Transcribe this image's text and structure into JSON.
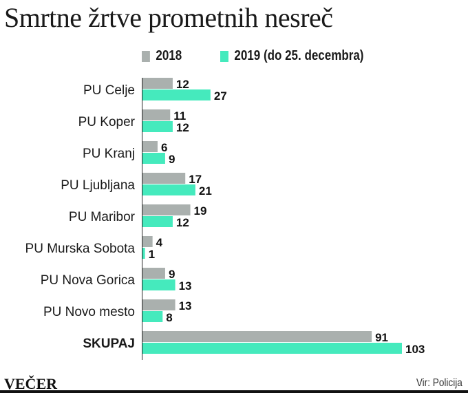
{
  "chart_data": {
    "type": "bar",
    "orientation": "horizontal",
    "title": "Smrtne žrtve prometnih nesreč",
    "categories": [
      "PU Celje",
      "PU Koper",
      "PU Kranj",
      "PU Ljubljana",
      "PU Maribor",
      "PU Murska Sobota",
      "PU Nova Gorica",
      "PU Novo mesto",
      "SKUPAJ"
    ],
    "series": [
      {
        "name": "2018",
        "color": "#aab0ae",
        "values": [
          12,
          11,
          6,
          17,
          19,
          4,
          9,
          13,
          91
        ]
      },
      {
        "name": "2019 (do 25. decembra)",
        "color": "#45eabd",
        "values": [
          27,
          12,
          9,
          21,
          12,
          1,
          13,
          8,
          103
        ]
      }
    ],
    "xlim": [
      0,
      103
    ],
    "grid": false,
    "legend": "top",
    "data_labels": true
  },
  "footer": {
    "brand": "VEČER",
    "source": "Vir: Policija"
  }
}
